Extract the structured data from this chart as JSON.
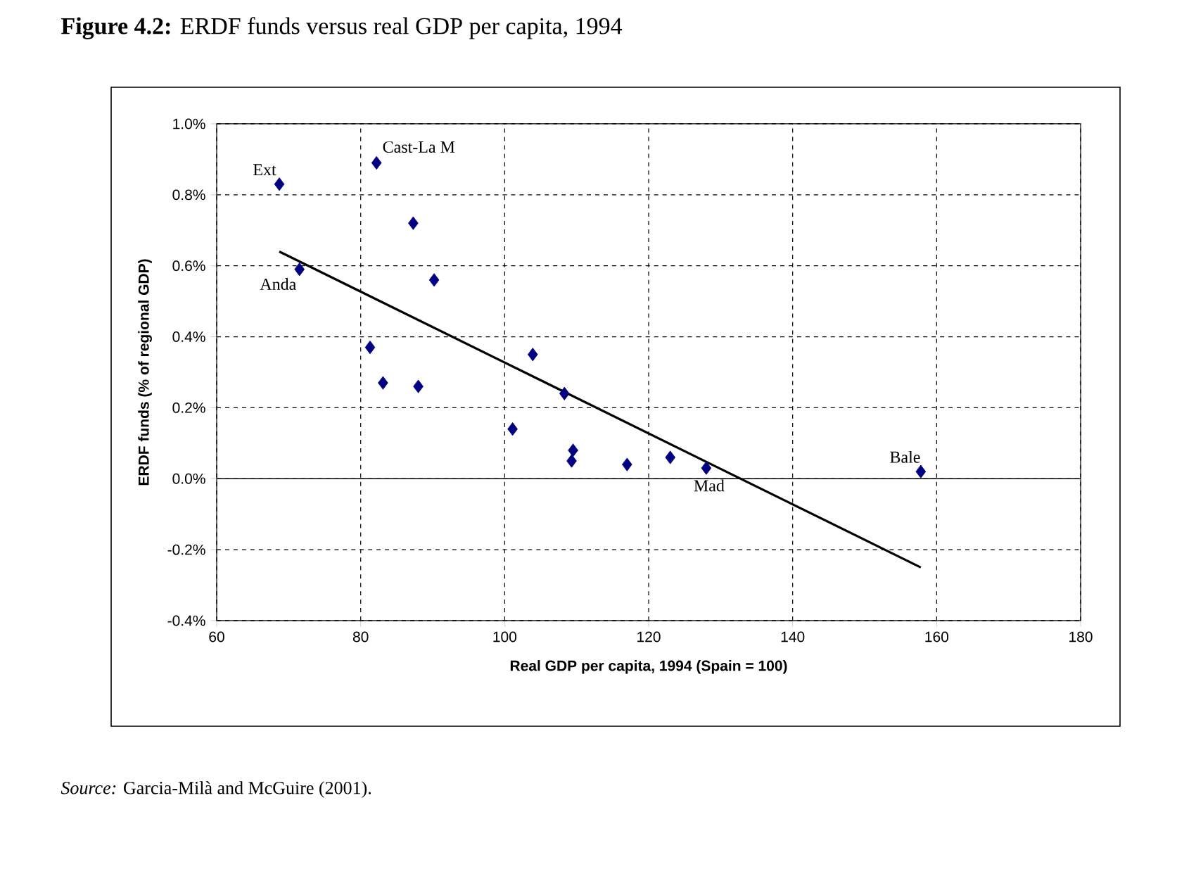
{
  "chart_data": {
    "type": "scatter",
    "title": "**Figure 4.2:** ERDF funds versus real GDP per capita, 1994",
    "xlabel": "Real GDP per capita, 1994 (Spain = 100)",
    "ylabel": "ERDF funds (% of regional GDP)",
    "series": [
      {
        "color": "#000080",
        "marker": "diamond",
        "x": [
          68.7,
          82.2,
          87.3,
          71.5,
          90.2,
          81.3,
          83.1,
          88.0,
          103.9,
          108.3,
          101.1,
          109.5,
          109.3,
          117.0,
          123.0,
          128.0,
          157.8
        ],
        "values": [
          0.83,
          0.89,
          0.72,
          0.59,
          0.56,
          0.37,
          0.27,
          0.26,
          0.35,
          0.24,
          0.14,
          0.08,
          0.05,
          0.04,
          0.06,
          0.03,
          0.02
        ]
      },
      {
        "type": "line",
        "color": "#000000",
        "marker": "none",
        "x": [
          68.7,
          157.8
        ],
        "values": [
          0.64,
          -0.25
        ]
      }
    ],
    "xlim": [
      60,
      180
    ],
    "xticks": [
      60,
      80,
      100,
      120,
      140,
      160,
      180
    ],
    "ylim": [
      -0.4,
      1.0
    ],
    "yticks": [
      {
        "value": -0.4,
        "label": "-0.4%"
      },
      {
        "value": -0.2,
        "label": "-0.2%"
      },
      {
        "value": 0.0,
        "label": "0.0%"
      },
      {
        "value": 0.2,
        "label": "0.2%"
      },
      {
        "value": 0.4,
        "label": "0.4%"
      },
      {
        "value": 0.6,
        "label": "0.6%"
      },
      {
        "value": 0.8,
        "label": "0.8%"
      },
      {
        "value": 1.0,
        "label": "1.0%"
      }
    ],
    "grid": true,
    "ref_lines": [
      {
        "axis": "y",
        "value": 0,
        "color": "#000000",
        "line_style": "solid"
      }
    ],
    "annotations": [
      {
        "text": "Ext",
        "x": 68.7,
        "y": 0.83
      },
      {
        "text": "Cast-La M",
        "x": 82.2,
        "y": 0.89
      },
      {
        "text": "Anda",
        "x": 71.5,
        "y": 0.59
      },
      {
        "text": "Mad",
        "x": 128.0,
        "y": 0.03
      },
      {
        "text": "Bale",
        "x": 157.8,
        "y": 0.02
      },
      "*Source:* Garcia-Milà and McGuire (2001)."
    ]
  }
}
